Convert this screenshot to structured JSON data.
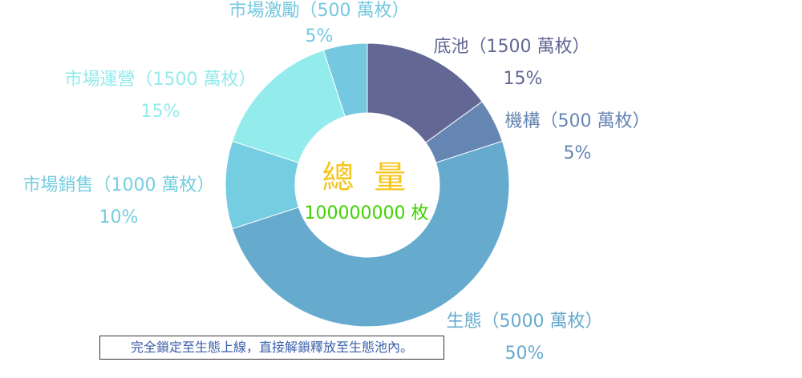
{
  "chart_data": {
    "type": "pie",
    "donut": true,
    "center": {
      "title": "總 量",
      "value": "100000000 枚"
    },
    "slices": [
      {
        "label": "底池（1500 萬枚）",
        "percent_label": "15%",
        "value": 15,
        "color": "#636794",
        "text_color": "#636794"
      },
      {
        "label": "機構（500 萬枚）",
        "percent_label": "5%",
        "value": 5,
        "color": "#6585b2",
        "text_color": "#6585b2"
      },
      {
        "label": "生態（5000 萬枚）",
        "percent_label": "50%",
        "value": 50,
        "color": "#66aace",
        "text_color": "#66aace"
      },
      {
        "label": "市場銷售（1000 萬枚）",
        "percent_label": "10%",
        "value": 10,
        "color": "#74cde0",
        "text_color": "#74cde0"
      },
      {
        "label": "市場運營（1500 萬枚）",
        "percent_label": "15%",
        "value": 15,
        "color": "#93ebec",
        "text_color": "#93ebec"
      },
      {
        "label": "市場激勵（500 萬枚）",
        "percent_label": "5%",
        "value": 5,
        "color": "#74c8e0",
        "text_color": "#74c8e0"
      }
    ],
    "legend": "none"
  },
  "footnote": "完全鎖定至生態上線，直接解鎖釋放至生態池內。"
}
